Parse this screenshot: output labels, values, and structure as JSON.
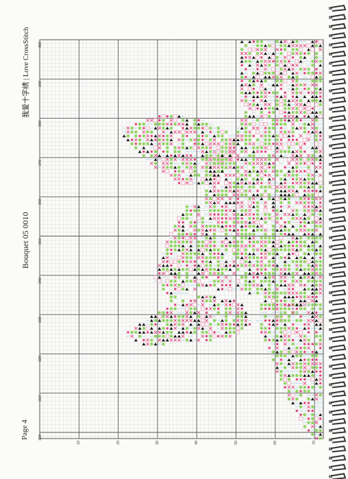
{
  "page": {
    "label": "Page 4",
    "pattern_title": "Bouquet 05 0010",
    "brand": "我爱十字绣 | Love CrossStitch"
  },
  "grid": {
    "left_ticks": [
      "400",
      "390",
      "380",
      "370",
      "360",
      "350",
      "340",
      "330",
      "320",
      "310",
      "300"
    ],
    "bottom_ticks": [
      "10",
      "20",
      "30",
      "40",
      "50",
      "60",
      "70"
    ]
  },
  "colors": {
    "background": "#fbfbf9",
    "grid_minor": "#d6d6d6",
    "grid_major": "#555555",
    "green": "#8fd45f",
    "pink": "#e0407a",
    "light_blue": "#b9dce8",
    "light_pink": "#f2b0c8",
    "black": "#111111",
    "binding": "#333333"
  },
  "symbols": [
    "filled-circle",
    "triangle",
    "cross",
    "square",
    "dot",
    "dash"
  ],
  "icons": {
    "binding": "spiral-binding-icon"
  }
}
